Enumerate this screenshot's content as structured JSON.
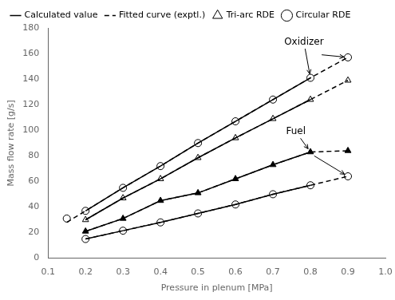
{
  "chart_data": {
    "type": "line",
    "xlabel": "Pressure in plenum [MPa]",
    "ylabel": "Mass flow rate [g/s]",
    "xlim": [
      0.1,
      1.0
    ],
    "ylim": [
      0,
      180
    ],
    "xticks": [
      0.1,
      0.2,
      0.3,
      0.4,
      0.5,
      0.6,
      0.7,
      0.8,
      0.9,
      {
        "value": 1.0,
        "label": "1.0"
      }
    ],
    "yticks": [
      0,
      20,
      40,
      60,
      80,
      100,
      120,
      140,
      160,
      180
    ],
    "grid": false,
    "legend": "upper left",
    "color": "#000000",
    "series": [
      {
        "name": "Calculated value",
        "line_style": "solid",
        "marker": "none",
        "x": [
          0.2,
          0.3,
          0.4,
          0.5,
          0.6,
          0.7,
          0.8
        ],
        "values": [
          30.0,
          47.0,
          62.0,
          78.5,
          94.0,
          109.0,
          124.0
        ]
      },
      {
        "name": "Fitted curve (exptl.)",
        "line_style": "dashed",
        "marker": "none",
        "x": [
          0.2,
          0.3,
          0.4,
          0.5,
          0.6,
          0.7,
          0.8,
          0.9
        ],
        "values": [
          30.0,
          47.0,
          62.0,
          78.5,
          94.0,
          109.0,
          124.0,
          139.0
        ]
      },
      {
        "name": "Tri-arc RDE",
        "line_style": "none",
        "marker": "triangle",
        "x": [
          0.2,
          0.3,
          0.4,
          0.5,
          0.6,
          0.7,
          0.8,
          0.9
        ],
        "values": [
          30.0,
          47.0,
          62.0,
          78.5,
          94.0,
          109.0,
          124.0,
          139.0
        ]
      },
      {
        "line_style": "solid",
        "marker": "none",
        "x": [
          0.2,
          0.3,
          0.4,
          0.5,
          0.6,
          0.7,
          0.8
        ],
        "values": [
          37.0,
          55.0,
          72.0,
          90.0,
          107.0,
          124.0,
          141.0
        ]
      },
      {
        "line_style": "dashed",
        "marker": "none",
        "x": [
          0.15,
          0.2,
          0.3,
          0.4,
          0.5,
          0.6,
          0.7,
          0.8,
          0.9
        ],
        "values": [
          28.0,
          37.0,
          55.0,
          72.0,
          90.0,
          107.0,
          124.0,
          141.0,
          157.0
        ]
      },
      {
        "name": "Circular RDE",
        "line_style": "none",
        "marker": "circle",
        "x": [
          0.15,
          0.2,
          0.3,
          0.4,
          0.5,
          0.6,
          0.7,
          0.8,
          0.9
        ],
        "values": [
          31.0,
          37.0,
          55.0,
          72.0,
          90.0,
          107.0,
          124.0,
          141.0,
          157.0
        ]
      },
      {
        "line_style": "solid",
        "marker": "none",
        "x": [
          0.2,
          0.3,
          0.4,
          0.5,
          0.6,
          0.7,
          0.8
        ],
        "values": [
          21.0,
          31.0,
          45.0,
          51.0,
          62.0,
          73.0,
          83.0
        ]
      },
      {
        "line_style": "dashed",
        "marker": "none",
        "x": [
          0.2,
          0.3,
          0.4,
          0.5,
          0.6,
          0.7,
          0.8,
          0.9
        ],
        "values": [
          21.0,
          31.0,
          45.0,
          51.0,
          62.0,
          73.0,
          83.0,
          84.0
        ]
      },
      {
        "line_style": "none",
        "marker": "filled_triangle",
        "x": [
          0.2,
          0.3,
          0.4,
          0.5,
          0.6,
          0.7,
          0.8,
          0.9
        ],
        "values": [
          21.0,
          31.0,
          45.0,
          51.0,
          62.0,
          73.0,
          83.0,
          84.0
        ]
      },
      {
        "line_style": "solid",
        "marker": "none",
        "x": [
          0.2,
          0.3,
          0.4,
          0.5,
          0.6,
          0.7,
          0.8
        ],
        "values": [
          15.0,
          21.5,
          28.0,
          35.0,
          42.0,
          50.0,
          57.0
        ]
      },
      {
        "line_style": "dashed",
        "marker": "none",
        "x": [
          0.2,
          0.3,
          0.4,
          0.5,
          0.6,
          0.7,
          0.8,
          0.9
        ],
        "values": [
          15.0,
          21.5,
          28.0,
          35.0,
          42.0,
          50.0,
          57.0,
          64.0
        ]
      },
      {
        "line_style": "none",
        "marker": "circle",
        "x": [
          0.2,
          0.3,
          0.4,
          0.5,
          0.6,
          0.7,
          0.8,
          0.9
        ],
        "values": [
          15.0,
          21.5,
          28.0,
          35.0,
          42.0,
          50.0,
          57.0,
          64.0
        ]
      }
    ],
    "annotations": [
      {
        "text": "Oxidizer",
        "x": 0.73,
        "y": 165,
        "arrows": [
          {
            "x": 0.8,
            "y": 141.0
          },
          {
            "x": 0.9,
            "y": 157.0,
            "from": [
              0.83,
              159
            ]
          }
        ]
      },
      {
        "text": "Fuel",
        "x": 0.735,
        "y": 95,
        "arrows": [
          {
            "x": 0.8,
            "y": 83.0
          },
          {
            "x": 0.9,
            "y": 64.0,
            "from": [
              0.81,
              80
            ]
          }
        ]
      }
    ]
  }
}
